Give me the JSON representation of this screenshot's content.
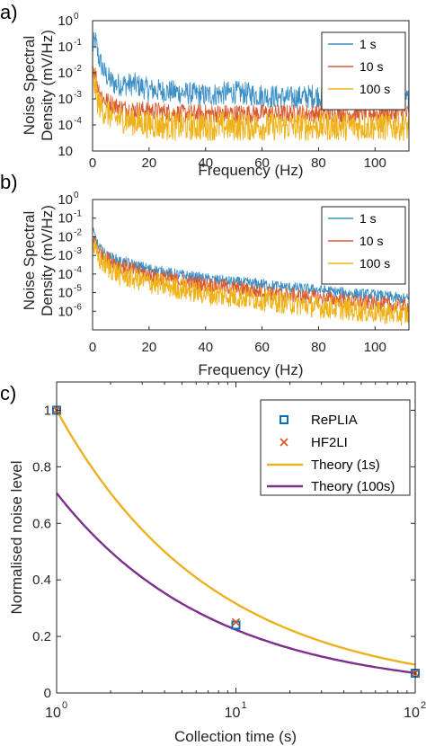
{
  "panels": {
    "a": {
      "label": "a)",
      "ylabel": [
        "Noise Spectral",
        "Density (mV/Hz)"
      ],
      "xlabel": "Frequency (Hz)",
      "xticks": [
        "0",
        "20",
        "40",
        "60",
        "80",
        "100"
      ],
      "yticks": [
        "10",
        "10",
        "10",
        "10",
        "10",
        "10"
      ],
      "yexps": [
        "0",
        "-1",
        "-2",
        "-3",
        "-4",
        ""
      ],
      "legend": [
        "1 s",
        "10 s",
        "100 s"
      ]
    },
    "b": {
      "label": "b)",
      "ylabel": [
        "Noise Spectral",
        "Density (mV/Hz)"
      ],
      "xlabel": "Frequency (Hz)",
      "xticks": [
        "0",
        "20",
        "40",
        "60",
        "80",
        "100"
      ],
      "yticks": [
        "10",
        "10",
        "10",
        "10",
        "10",
        "10",
        "10"
      ],
      "yexps": [
        "0",
        "-1",
        "-2",
        "-3",
        "-4",
        "-5",
        "-6"
      ],
      "legend": [
        "1 s",
        "10 s",
        "100 s"
      ]
    },
    "c": {
      "label": "c)",
      "ylabel": "Normalised noise level",
      "xlabel": "Collection time (s)",
      "xticks": [
        "10",
        "10",
        "10"
      ],
      "xexps": [
        "0",
        "1",
        "2"
      ],
      "yticks": [
        "0",
        "0.2",
        "0.4",
        "0.6",
        "0.8",
        "1"
      ],
      "legend": [
        "RePLIA",
        "HF2LI",
        "Theory (1s)",
        "Theory (100s)"
      ]
    }
  },
  "colors": {
    "s1": "#3b8fc4",
    "s10": "#d95a32",
    "s100": "#f0b21a",
    "theory1": "#edb120",
    "theory100": "#7e2f8e",
    "replia": "#0072bd",
    "hf2li": "#d95319"
  },
  "chart_data": [
    {
      "type": "line",
      "title": "",
      "xlabel": "Frequency (Hz)",
      "ylabel": "Noise Spectral Density (mV/Hz)",
      "xlim": [
        0,
        112
      ],
      "ylim_log10": [
        -5,
        0
      ],
      "yscale": "log",
      "legend_position": "top-right",
      "series": [
        {
          "name": "1 s",
          "x": [
            0,
            1,
            2,
            4,
            6,
            8,
            10,
            15,
            20,
            30,
            40,
            50,
            60,
            70,
            80,
            90,
            100,
            110
          ],
          "values": [
            0.1,
            0.2,
            0.05,
            0.012,
            0.006,
            0.004,
            0.004,
            0.004,
            0.0025,
            0.002,
            0.0015,
            0.002,
            0.0015,
            0.0012,
            0.0015,
            0.0012,
            0.0015,
            0.001
          ]
        },
        {
          "name": "10 s",
          "x": [
            0,
            1,
            2,
            4,
            6,
            8,
            10,
            15,
            20,
            30,
            40,
            50,
            60,
            70,
            80,
            90,
            100,
            110
          ],
          "values": [
            0.02,
            0.01,
            0.003,
            0.001,
            0.0008,
            0.0006,
            0.0005,
            0.0004,
            0.0004,
            0.0003,
            0.0003,
            0.0003,
            0.0003,
            0.0003,
            0.0003,
            0.0003,
            0.0003,
            0.0003
          ]
        },
        {
          "name": "100 s",
          "x": [
            0,
            1,
            2,
            4,
            6,
            8,
            10,
            15,
            20,
            30,
            40,
            50,
            60,
            70,
            80,
            90,
            100,
            110
          ],
          "values": [
            0.01,
            0.003,
            0.0008,
            0.0004,
            0.0003,
            0.0002,
            0.0002,
            0.00015,
            0.00012,
            0.0001,
            0.0001,
            0.0001,
            0.0001,
            0.0001,
            0.0001,
            0.0001,
            0.0001,
            0.0001
          ]
        }
      ]
    },
    {
      "type": "line",
      "title": "",
      "xlabel": "Frequency (Hz)",
      "ylabel": "Noise Spectral Density (mV/Hz)",
      "xlim": [
        0,
        112
      ],
      "ylim_log10": [
        -7,
        0
      ],
      "yscale": "log",
      "legend_position": "top-right",
      "series": [
        {
          "name": "1 s",
          "x": [
            0,
            1,
            2,
            5,
            10,
            20,
            30,
            40,
            50,
            60,
            70,
            80,
            90,
            100,
            110
          ],
          "values": [
            0.02,
            0.01,
            0.003,
            0.001,
            0.0005,
            0.0002,
            0.0001,
            6e-05,
            4e-05,
            3e-05,
            2e-05,
            1.5e-05,
            1e-05,
            8e-06,
            5e-06
          ]
        },
        {
          "name": "10 s",
          "x": [
            0,
            1,
            2,
            5,
            10,
            20,
            30,
            40,
            50,
            60,
            70,
            80,
            90,
            100,
            110
          ],
          "values": [
            0.01,
            0.005,
            0.002,
            0.0008,
            0.0003,
            0.0001,
            5e-05,
            3e-05,
            2e-05,
            1.2e-05,
            8e-06,
            6e-06,
            4e-06,
            3e-06,
            2e-06
          ]
        },
        {
          "name": "100 s",
          "x": [
            0,
            1,
            2,
            5,
            10,
            20,
            30,
            40,
            50,
            60,
            70,
            80,
            90,
            100,
            110
          ],
          "values": [
            0.005,
            0.002,
            0.0008,
            0.0003,
            0.0001,
            4e-05,
            2e-05,
            1e-05,
            7e-06,
            5e-06,
            3e-06,
            2e-06,
            1.5e-06,
            1e-06,
            8e-07
          ]
        }
      ]
    },
    {
      "type": "line",
      "title": "",
      "xlabel": "Collection time (s)",
      "ylabel": "Normalised noise level",
      "xscale": "log",
      "xlim": [
        1,
        100
      ],
      "ylim": [
        0,
        1.1
      ],
      "legend_position": "top-right",
      "series": [
        {
          "name": "RePLIA",
          "marker": "square",
          "x": [
            1,
            10,
            100
          ],
          "values": [
            1.0,
            0.24,
            0.07
          ]
        },
        {
          "name": "HF2LI",
          "marker": "x",
          "x": [
            1,
            10,
            100
          ],
          "values": [
            1.0,
            0.25,
            0.07
          ]
        },
        {
          "name": "Theory (1s)",
          "x": [
            1,
            2,
            3,
            5,
            10,
            20,
            30,
            50,
            100
          ],
          "values": [
            1.0,
            0.707,
            0.577,
            0.447,
            0.316,
            0.224,
            0.183,
            0.141,
            0.1
          ]
        },
        {
          "name": "Theory (100s)",
          "x": [
            1,
            2,
            3,
            5,
            10,
            20,
            30,
            50,
            100
          ],
          "values": [
            0.7071,
            0.5,
            0.4082,
            0.3162,
            0.2236,
            0.1581,
            0.1291,
            0.1,
            0.0707
          ]
        }
      ]
    }
  ]
}
